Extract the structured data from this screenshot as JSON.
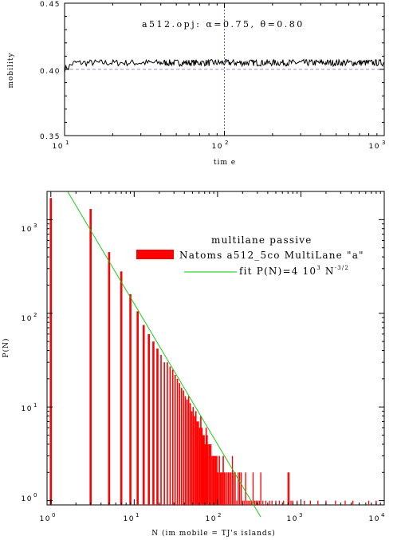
{
  "chart_data": [
    {
      "type": "line",
      "xscale": "log",
      "xlim": [
        10,
        1000
      ],
      "ylim": [
        0.35,
        0.45
      ],
      "xlabel": "tim e",
      "ylabel": "mobility",
      "annotation": "a512.opj:   α=0.75,  θ=0.80",
      "yticks": [
        "0.35",
        "0.40",
        "0.45"
      ],
      "xticks": [
        {
          "base": "10",
          "exp": "1"
        },
        {
          "base": "10",
          "exp": "2"
        },
        {
          "base": "10",
          "exp": "3"
        }
      ],
      "reference_y": 0.4,
      "reference_x": 100,
      "series": [
        {
          "color": "#000000",
          "start": 0.4,
          "mean": 0.405,
          "noise": 0.0025,
          "x": [
            10,
            1000
          ]
        }
      ],
      "colors": {
        "reference_h": "#6666dd",
        "reference_v": "#3333cc",
        "series": "#000000"
      }
    },
    {
      "type": "bar",
      "xscale": "log",
      "yscale": "log",
      "xlim": [
        0.9,
        10000
      ],
      "ylim": [
        0.9,
        2000
      ],
      "xlabel": "N  (im mobile = TJ's islands)",
      "ylabel": "P(N)",
      "legend_title": "multilane passive",
      "xticks": [
        {
          "base": "10",
          "exp": "0"
        },
        {
          "base": "10",
          "exp": "1"
        },
        {
          "base": "10",
          "exp": "2"
        },
        {
          "base": "10",
          "exp": "3"
        },
        {
          "base": "10",
          "exp": "4"
        }
      ],
      "yticks": [
        {
          "base": "10",
          "exp": "0"
        },
        {
          "base": "10",
          "exp": "1"
        },
        {
          "base": "10",
          "exp": "2"
        },
        {
          "base": "10",
          "exp": "3"
        }
      ],
      "series": [
        {
          "name": "Natoms a512_5co MultiLane \"a\"",
          "color": "#ff0000",
          "points": [
            [
              1,
              1700
            ],
            [
              3,
              1300
            ],
            [
              5,
              450
            ],
            [
              7,
              280
            ],
            [
              9,
              160
            ],
            [
              11,
              105
            ],
            [
              13,
              75
            ],
            [
              15,
              60
            ],
            [
              17,
              50
            ],
            [
              19,
              42
            ],
            [
              21,
              36
            ],
            [
              23,
              30
            ],
            [
              25,
              30
            ],
            [
              27,
              27
            ],
            [
              29,
              25
            ],
            [
              31,
              22
            ],
            [
              33,
              20
            ],
            [
              35,
              18
            ],
            [
              37,
              16
            ],
            [
              39,
              15
            ],
            [
              41,
              13
            ],
            [
              43,
              12
            ],
            [
              45,
              13
            ],
            [
              47,
              11
            ],
            [
              49,
              9
            ],
            [
              51,
              10
            ],
            [
              53,
              8
            ],
            [
              55,
              9
            ],
            [
              57,
              7
            ],
            [
              59,
              7
            ],
            [
              61,
              6
            ],
            [
              63,
              8
            ],
            [
              65,
              6
            ],
            [
              67,
              5
            ],
            [
              69,
              5
            ],
            [
              71,
              4
            ],
            [
              73,
              6
            ],
            [
              75,
              5
            ],
            [
              77,
              4
            ],
            [
              80,
              4
            ],
            [
              83,
              4
            ],
            [
              86,
              3
            ],
            [
              89,
              3
            ],
            [
              92,
              3
            ],
            [
              95,
              3
            ],
            [
              98,
              3
            ],
            [
              101,
              2
            ],
            [
              105,
              3
            ],
            [
              109,
              2
            ],
            [
              113,
              2
            ],
            [
              117,
              3
            ],
            [
              121,
              2
            ],
            [
              125,
              2
            ],
            [
              130,
              2
            ],
            [
              135,
              2
            ],
            [
              140,
              2
            ],
            [
              145,
              2
            ],
            [
              151,
              3
            ],
            [
              157,
              2
            ],
            [
              163,
              2
            ],
            [
              170,
              1
            ],
            [
              177,
              2
            ],
            [
              184,
              2
            ],
            [
              192,
              2
            ],
            [
              200,
              1
            ],
            [
              208,
              1
            ],
            [
              217,
              2
            ],
            [
              226,
              1
            ],
            [
              236,
              1
            ],
            [
              246,
              1
            ],
            [
              256,
              1
            ],
            [
              267,
              2
            ],
            [
              279,
              1
            ],
            [
              291,
              1
            ],
            [
              304,
              1
            ],
            [
              318,
              1
            ],
            [
              330,
              2
            ],
            [
              350,
              1
            ],
            [
              380,
              1
            ],
            [
              420,
              1
            ],
            [
              450,
              1
            ],
            [
              500,
              1
            ],
            [
              550,
              1
            ],
            [
              620,
              1
            ],
            [
              700,
              2
            ],
            [
              720,
              2
            ],
            [
              760,
              1
            ],
            [
              800,
              1
            ],
            [
              900,
              1
            ],
            [
              1100,
              1
            ],
            [
              1300,
              1
            ],
            [
              1600,
              1
            ],
            [
              2000,
              1
            ],
            [
              2600,
              1
            ],
            [
              3400,
              1
            ],
            [
              4200,
              1
            ],
            [
              6500,
              1
            ],
            [
              8000,
              1
            ]
          ]
        },
        {
          "name": "fit P(N)=4 10",
          "name_sup": "3",
          "name_tail": " N",
          "name_tail_sup": "-3/2",
          "color": "#00cc00",
          "fit_constant": 4000,
          "exponent": -1.5,
          "x": [
            1.6,
            330
          ]
        }
      ]
    }
  ]
}
